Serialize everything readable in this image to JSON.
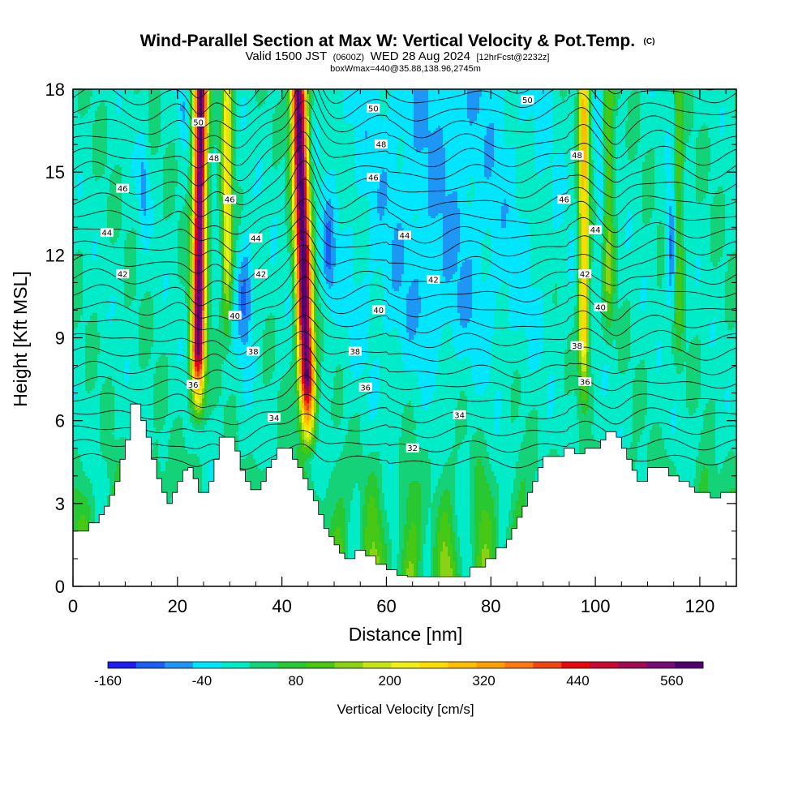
{
  "title": {
    "main": "Wind-Parallel Section at Max W: Vertical Velocity & Pot.Temp.",
    "copyright": "(C)",
    "valid_prefix": "Valid 1500 JST",
    "valid_z": "(0600Z)",
    "valid_date": "WED 28 Aug 2024",
    "forecast": "[12hrFcst@2232z]",
    "box": "boxWmax=440@35.88,138.96,2745m"
  },
  "chart_data": {
    "type": "heatmap",
    "xlabel": "Distance [nm]",
    "ylabel": "Height [Kft MSL]",
    "xlim": [
      0,
      127
    ],
    "ylim": [
      0,
      18
    ],
    "x_ticks": [
      0,
      20,
      40,
      60,
      80,
      100,
      120
    ],
    "y_ticks": [
      0,
      3,
      6,
      9,
      12,
      15,
      18
    ],
    "colorbar": {
      "title": "Vertical Velocity [cm/s]",
      "tick_labels": [
        "-160",
        "-40",
        "80",
        "200",
        "320",
        "440",
        "560"
      ],
      "tick_values": [
        -160,
        -40,
        80,
        200,
        320,
        440,
        560
      ],
      "min": -160,
      "max": 600,
      "colors": [
        "#1e1ef0",
        "#1c5ff4",
        "#1e96f6",
        "#00e6ff",
        "#00ebc8",
        "#14d278",
        "#28c832",
        "#46c814",
        "#8cd214",
        "#c8e614",
        "#f0f014",
        "#ffdc00",
        "#ffbe00",
        "#ffa000",
        "#ff7814",
        "#f04614",
        "#e60a0a",
        "#c80a32",
        "#a00a50",
        "#780a78",
        "#50006e"
      ]
    },
    "updraft_cores_nm": [
      24,
      44,
      97.5
    ],
    "max_w_cm_s": 440,
    "theta_contour_labels": [
      {
        "value": "50",
        "x": 24,
        "y": 16.8
      },
      {
        "value": "48",
        "x": 27,
        "y": 15.5
      },
      {
        "value": "46",
        "x": 9.5,
        "y": 14.4
      },
      {
        "value": "46",
        "x": 30,
        "y": 14.0
      },
      {
        "value": "44",
        "x": 6.5,
        "y": 12.8
      },
      {
        "value": "44",
        "x": 35,
        "y": 12.6
      },
      {
        "value": "42",
        "x": 9.5,
        "y": 11.3
      },
      {
        "value": "42",
        "x": 36,
        "y": 11.3
      },
      {
        "value": "40",
        "x": 31,
        "y": 9.8
      },
      {
        "value": "38",
        "x": 34.5,
        "y": 8.5
      },
      {
        "value": "36",
        "x": 23,
        "y": 7.3
      },
      {
        "value": "34",
        "x": 38.5,
        "y": 6.1
      },
      {
        "value": "50",
        "x": 57.5,
        "y": 17.3
      },
      {
        "value": "48",
        "x": 59,
        "y": 16.0
      },
      {
        "value": "46",
        "x": 57.5,
        "y": 14.8
      },
      {
        "value": "44",
        "x": 63.5,
        "y": 12.7
      },
      {
        "value": "42",
        "x": 69,
        "y": 11.1
      },
      {
        "value": "40",
        "x": 58.5,
        "y": 10.0
      },
      {
        "value": "38",
        "x": 54,
        "y": 8.5
      },
      {
        "value": "36",
        "x": 56,
        "y": 7.2
      },
      {
        "value": "34",
        "x": 74,
        "y": 6.2
      },
      {
        "value": "32",
        "x": 65,
        "y": 5.0
      },
      {
        "value": "50",
        "x": 87,
        "y": 17.6
      },
      {
        "value": "48",
        "x": 96.5,
        "y": 15.6
      },
      {
        "value": "46",
        "x": 94,
        "y": 14.0
      },
      {
        "value": "44",
        "x": 100,
        "y": 12.9
      },
      {
        "value": "42",
        "x": 98,
        "y": 11.3
      },
      {
        "value": "40",
        "x": 101,
        "y": 10.1
      },
      {
        "value": "38",
        "x": 96.5,
        "y": 8.7
      },
      {
        "value": "36",
        "x": 98,
        "y": 7.4
      }
    ]
  }
}
